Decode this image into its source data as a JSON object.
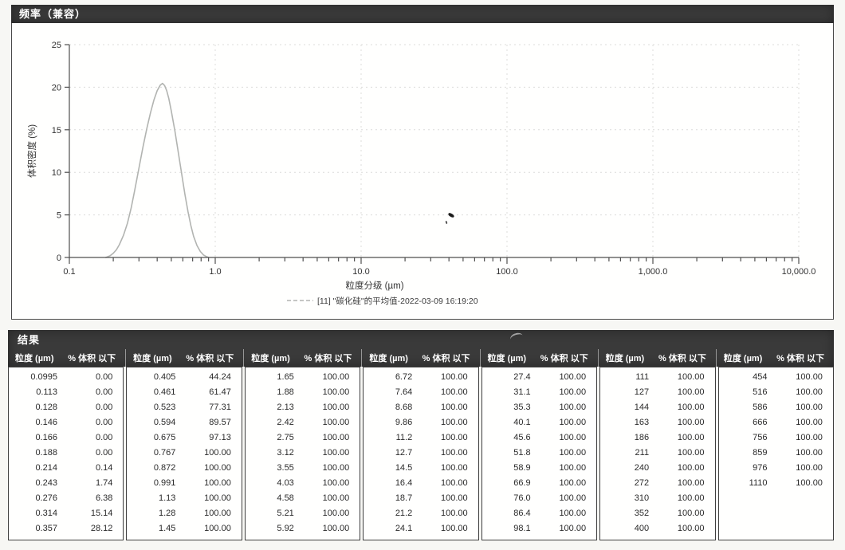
{
  "chart_panel": {
    "title": "频率（兼容）"
  },
  "chart_data": {
    "type": "line",
    "title": "频率（兼容）",
    "xlabel": "粒度分级 (µm)",
    "ylabel": "体积密度 (%)",
    "x_scale": "log",
    "xlim": [
      0.1,
      10000
    ],
    "ylim": [
      0,
      25
    ],
    "y_ticks": [
      0,
      5,
      10,
      15,
      20,
      25
    ],
    "x_tick_labels": [
      "0.1",
      "1.0",
      "10.0",
      "100.0",
      "1,000.0",
      "10,000.0"
    ],
    "grid": true,
    "legend_position": "bottom",
    "series": [
      {
        "name": "[11] \"碳化硅\"的平均值-2022-03-09 16:19:20",
        "color": "#b2b4b1",
        "peak": {
          "x": 0.43,
          "y": 20.4
        },
        "points": [
          [
            0.178,
            0
          ],
          [
            0.19,
            0.2
          ],
          [
            0.2,
            0.5
          ],
          [
            0.21,
            0.9
          ],
          [
            0.22,
            1.5
          ],
          [
            0.235,
            2.6
          ],
          [
            0.25,
            4.0
          ],
          [
            0.265,
            5.8
          ],
          [
            0.28,
            7.8
          ],
          [
            0.3,
            10.5
          ],
          [
            0.32,
            13.0
          ],
          [
            0.34,
            15.2
          ],
          [
            0.36,
            17.0
          ],
          [
            0.38,
            18.5
          ],
          [
            0.4,
            19.6
          ],
          [
            0.42,
            20.25
          ],
          [
            0.435,
            20.45
          ],
          [
            0.45,
            20.2
          ],
          [
            0.465,
            19.6
          ],
          [
            0.48,
            18.7
          ],
          [
            0.5,
            17.2
          ],
          [
            0.53,
            14.8
          ],
          [
            0.56,
            12.2
          ],
          [
            0.59,
            9.7
          ],
          [
            0.62,
            7.4
          ],
          [
            0.65,
            5.4
          ],
          [
            0.68,
            3.8
          ],
          [
            0.71,
            2.5
          ],
          [
            0.75,
            1.4
          ],
          [
            0.79,
            0.7
          ],
          [
            0.83,
            0.3
          ],
          [
            0.87,
            0.1
          ],
          [
            0.9,
            0
          ]
        ]
      }
    ]
  },
  "results": {
    "title": "结果",
    "columns": [
      "粒度 (µm)",
      "% 体积 以下"
    ],
    "groups": [
      {
        "rows": [
          [
            "0.0995",
            "0.00"
          ],
          [
            "0.113",
            "0.00"
          ],
          [
            "0.128",
            "0.00"
          ],
          [
            "0.146",
            "0.00"
          ],
          [
            "0.166",
            "0.00"
          ],
          [
            "0.188",
            "0.00"
          ],
          [
            "0.214",
            "0.14"
          ],
          [
            "0.243",
            "1.74"
          ],
          [
            "0.276",
            "6.38"
          ],
          [
            "0.314",
            "15.14"
          ],
          [
            "0.357",
            "28.12"
          ]
        ]
      },
      {
        "rows": [
          [
            "0.405",
            "44.24"
          ],
          [
            "0.461",
            "61.47"
          ],
          [
            "0.523",
            "77.31"
          ],
          [
            "0.594",
            "89.57"
          ],
          [
            "0.675",
            "97.13"
          ],
          [
            "0.767",
            "100.00"
          ],
          [
            "0.872",
            "100.00"
          ],
          [
            "0.991",
            "100.00"
          ],
          [
            "1.13",
            "100.00"
          ],
          [
            "1.28",
            "100.00"
          ],
          [
            "1.45",
            "100.00"
          ]
        ]
      },
      {
        "rows": [
          [
            "1.65",
            "100.00"
          ],
          [
            "1.88",
            "100.00"
          ],
          [
            "2.13",
            "100.00"
          ],
          [
            "2.42",
            "100.00"
          ],
          [
            "2.75",
            "100.00"
          ],
          [
            "3.12",
            "100.00"
          ],
          [
            "3.55",
            "100.00"
          ],
          [
            "4.03",
            "100.00"
          ],
          [
            "4.58",
            "100.00"
          ],
          [
            "5.21",
            "100.00"
          ],
          [
            "5.92",
            "100.00"
          ]
        ]
      },
      {
        "rows": [
          [
            "6.72",
            "100.00"
          ],
          [
            "7.64",
            "100.00"
          ],
          [
            "8.68",
            "100.00"
          ],
          [
            "9.86",
            "100.00"
          ],
          [
            "11.2",
            "100.00"
          ],
          [
            "12.7",
            "100.00"
          ],
          [
            "14.5",
            "100.00"
          ],
          [
            "16.4",
            "100.00"
          ],
          [
            "18.7",
            "100.00"
          ],
          [
            "21.2",
            "100.00"
          ],
          [
            "24.1",
            "100.00"
          ]
        ]
      },
      {
        "rows": [
          [
            "27.4",
            "100.00"
          ],
          [
            "31.1",
            "100.00"
          ],
          [
            "35.3",
            "100.00"
          ],
          [
            "40.1",
            "100.00"
          ],
          [
            "45.6",
            "100.00"
          ],
          [
            "51.8",
            "100.00"
          ],
          [
            "58.9",
            "100.00"
          ],
          [
            "66.9",
            "100.00"
          ],
          [
            "76.0",
            "100.00"
          ],
          [
            "86.4",
            "100.00"
          ],
          [
            "98.1",
            "100.00"
          ]
        ]
      },
      {
        "rows": [
          [
            "111",
            "100.00"
          ],
          [
            "127",
            "100.00"
          ],
          [
            "144",
            "100.00"
          ],
          [
            "163",
            "100.00"
          ],
          [
            "186",
            "100.00"
          ],
          [
            "211",
            "100.00"
          ],
          [
            "240",
            "100.00"
          ],
          [
            "272",
            "100.00"
          ],
          [
            "310",
            "100.00"
          ],
          [
            "352",
            "100.00"
          ],
          [
            "400",
            "100.00"
          ]
        ]
      },
      {
        "rows": [
          [
            "454",
            "100.00"
          ],
          [
            "516",
            "100.00"
          ],
          [
            "586",
            "100.00"
          ],
          [
            "666",
            "100.00"
          ],
          [
            "756",
            "100.00"
          ],
          [
            "859",
            "100.00"
          ],
          [
            "976",
            "100.00"
          ],
          [
            "1110",
            "100.00"
          ]
        ]
      }
    ]
  },
  "colors": {
    "header_bar": "#3a3a3a",
    "curve": "#b2b4b1",
    "grid": "#dcdcda",
    "axis": "#4f4f4f"
  }
}
